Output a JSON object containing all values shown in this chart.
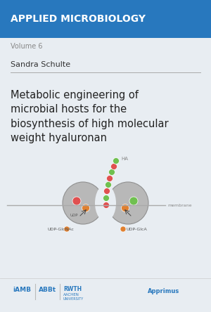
{
  "bg_color": "#e8edf2",
  "header_color": "#2878be",
  "header_text": "APPLIED MICROBIOLOGY",
  "header_text_color": "#ffffff",
  "volume_text": "Volume 6",
  "volume_color": "#888888",
  "author_text": "Sandra Schulte",
  "author_color": "#333333",
  "title_text": "Metabolic engineering of\nmicrobial hosts for the\nbiosynthesis of high molecular\nweight hyaluronan",
  "title_color": "#222222",
  "divider_color": "#aaaaaa",
  "membrane_line_color": "#aaaaaa",
  "ha_label": "HA",
  "membrane_label": "membrane",
  "label_color": "#888888",
  "bead_red": "#e05050",
  "bead_green": "#70c050",
  "bead_orange": "#e08030",
  "enzyme_gray": "#b8b8b8",
  "enzyme_outline": "#909090",
  "udp_label_color": "#555555",
  "logo_color": "#2878be",
  "arrow_color": "#444444"
}
